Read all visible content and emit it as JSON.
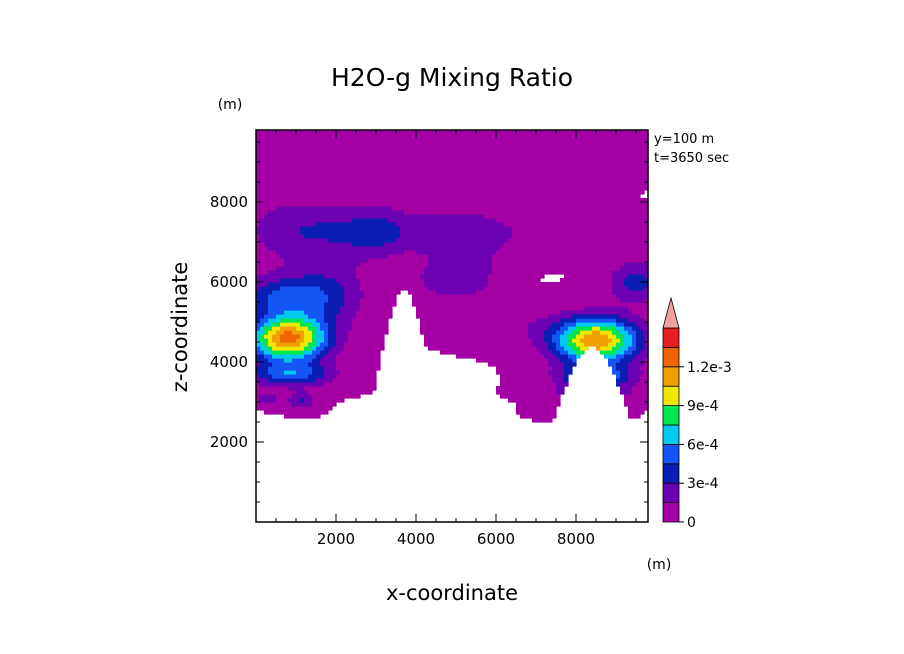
{
  "chart_data": {
    "type": "heatmap",
    "title": "H2O-g Mixing Ratio",
    "xlabel": "x-coordinate",
    "ylabel": "z-coordinate",
    "x_unit": "(m)",
    "y_unit": "(m)",
    "xlim": [
      0,
      9800
    ],
    "ylim": [
      0,
      9800
    ],
    "x_ticks": [
      2000,
      4000,
      6000,
      8000
    ],
    "y_ticks": [
      2000,
      4000,
      6000,
      8000
    ],
    "x_tick_labels": [
      "2000",
      "4000",
      "6000",
      "8000"
    ],
    "y_tick_labels": [
      "2000",
      "4000",
      "6000",
      "8000"
    ],
    "annotations": [
      "y=100 m",
      "t=3650 sec"
    ],
    "colorbar": {
      "levels": [
        0,
        0.00015,
        0.0003,
        0.00045,
        0.0006,
        0.00075,
        0.0009,
        0.00105,
        0.0012,
        0.00135
      ],
      "labeled_values": [
        0,
        0.0003,
        0.0006,
        0.0009,
        0.0012
      ],
      "labels": [
        "0",
        "3e-4",
        "6e-4",
        "9e-4",
        "1.2e-3"
      ],
      "colors": [
        "#a500a5",
        "#6e00b4",
        "#0a1eb4",
        "#1455f5",
        "#00c8f0",
        "#00e650",
        "#f0e600",
        "#f0a000",
        "#f06400",
        "#e61e1e",
        "#f0a0a0",
        "#ffe6e6"
      ],
      "extend": "max"
    },
    "blobs": [
      {
        "x": 4900,
        "z": 9300,
        "sx": 9000,
        "sz": 500,
        "amp": 7e-05
      },
      {
        "x": 5200,
        "z": 8400,
        "sx": 1800,
        "sz": 900,
        "amp": 0.0001
      },
      {
        "x": 600,
        "z": 7600,
        "sx": 1000,
        "sz": 1600,
        "amp": 6e-05
      },
      {
        "x": 1700,
        "z": 7300,
        "sx": 1700,
        "sz": 700,
        "amp": 0.00028
      },
      {
        "x": 3000,
        "z": 7250,
        "sx": 700,
        "sz": 600,
        "amp": 0.0002
      },
      {
        "x": 5100,
        "z": 7200,
        "sx": 1700,
        "sz": 500,
        "amp": 0.00025
      },
      {
        "x": 4600,
        "z": 6100,
        "sx": 800,
        "sz": 600,
        "amp": 0.0002
      },
      {
        "x": 5500,
        "z": 6250,
        "sx": 600,
        "sz": 700,
        "amp": 0.00018
      },
      {
        "x": 800,
        "z": 4600,
        "sx": 950,
        "sz": 560,
        "amp": 0.00125
      },
      {
        "x": 700,
        "z": 5650,
        "sx": 1200,
        "sz": 500,
        "amp": 0.00042
      },
      {
        "x": 1800,
        "z": 5700,
        "sx": 1000,
        "sz": 900,
        "amp": 0.00025
      },
      {
        "x": 900,
        "z": 3700,
        "sx": 1000,
        "sz": 300,
        "amp": 0.0005
      },
      {
        "x": 300,
        "z": 3100,
        "sx": 250,
        "sz": 150,
        "amp": 0.0003
      },
      {
        "x": 1150,
        "z": 3050,
        "sx": 350,
        "sz": 200,
        "amp": 0.0003
      },
      {
        "x": 8500,
        "z": 4550,
        "sx": 1050,
        "sz": 560,
        "amp": 0.0012
      },
      {
        "x": 8500,
        "z": 3650,
        "sx": 900,
        "sz": 280,
        "amp": 0.0006
      },
      {
        "x": 8400,
        "z": 3250,
        "sx": 1000,
        "sz": 180,
        "amp": 0.0003
      },
      {
        "x": 8100,
        "z": 2800,
        "sx": 700,
        "sz": 150,
        "amp": 0.00025
      },
      {
        "x": 9500,
        "z": 6000,
        "sx": 700,
        "sz": 500,
        "amp": 0.00035
      },
      {
        "x": 9600,
        "z": 7000,
        "sx": 600,
        "sz": 500,
        "amp": 0.0001
      },
      {
        "x": 8500,
        "z": 1900,
        "sx": 300,
        "sz": 130,
        "amp": 6e-05
      },
      {
        "x": 6300,
        "z": 5000,
        "sx": 1200,
        "sz": 450,
        "amp": 0.00012
      }
    ],
    "mountains": [
      {
        "x": 3700,
        "height": 5800,
        "width": 1000
      },
      {
        "x": 8400,
        "height": 4400,
        "width": 1300
      }
    ]
  }
}
